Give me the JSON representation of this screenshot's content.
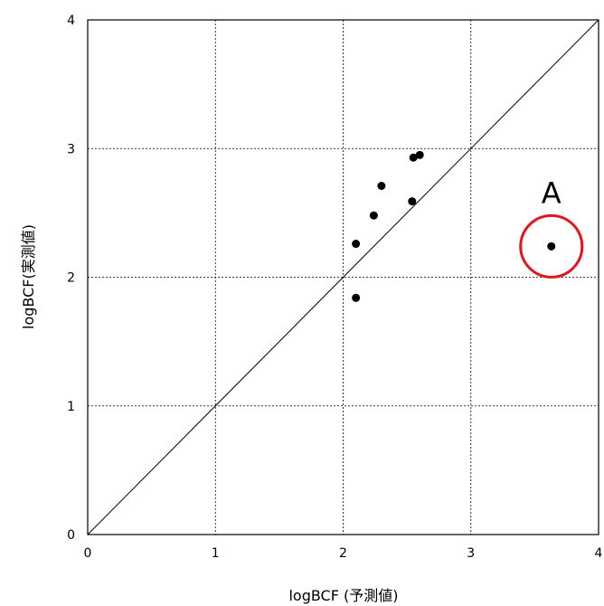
{
  "chart_data": {
    "type": "scatter",
    "xlabel": "logBCF (予測値)",
    "ylabel": "logBCF(実測値)",
    "xlim": [
      0,
      4
    ],
    "ylim": [
      0,
      4
    ],
    "xticks": [
      "0",
      "1",
      "2",
      "3",
      "4"
    ],
    "yticks": [
      "0",
      "1",
      "2",
      "3",
      "4"
    ],
    "grid": true,
    "grid_style": "dotted",
    "reference_line": {
      "from": [
        0,
        0
      ],
      "to": [
        4,
        4
      ]
    },
    "points": [
      {
        "x": 2.1,
        "y": 1.84
      },
      {
        "x": 2.1,
        "y": 2.26
      },
      {
        "x": 2.24,
        "y": 2.48
      },
      {
        "x": 2.3,
        "y": 2.71
      },
      {
        "x": 2.54,
        "y": 2.59
      },
      {
        "x": 2.55,
        "y": 2.93
      },
      {
        "x": 2.6,
        "y": 2.95
      },
      {
        "x": 3.63,
        "y": 2.24
      }
    ],
    "annotations": [
      {
        "text": "A",
        "x": 3.63,
        "y": 2.24,
        "circle_color": "#e8141c"
      }
    ]
  }
}
